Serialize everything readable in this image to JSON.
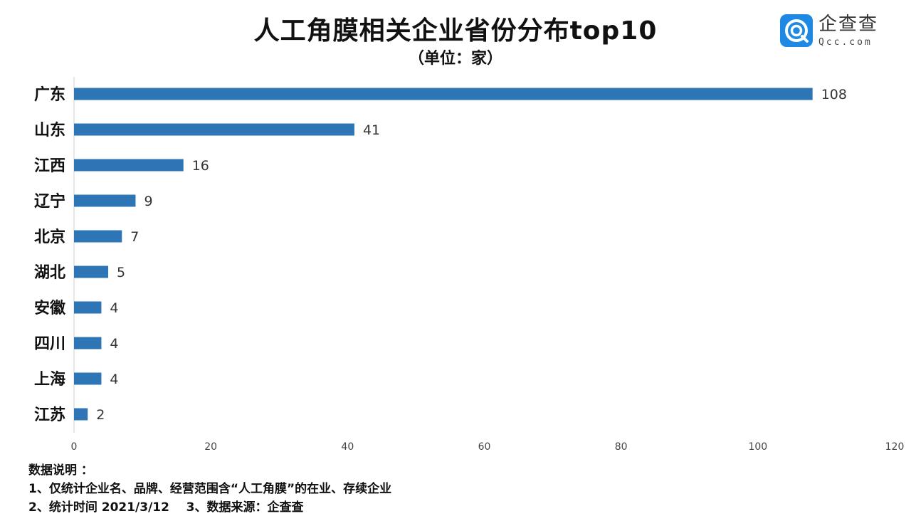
{
  "header": {
    "title": "人工角膜相关企业省份分布top10",
    "subtitle": "（单位：家）"
  },
  "logo": {
    "name": "企查查",
    "domain": "Qcc.com",
    "icon": "qcc-logo-icon",
    "color": "#1e88e5"
  },
  "chart_data": {
    "type": "bar",
    "orientation": "horizontal",
    "categories": [
      "广东",
      "山东",
      "江西",
      "辽宁",
      "北京",
      "湖北",
      "安徽",
      "四川",
      "上海",
      "江苏"
    ],
    "values": [
      108,
      41,
      16,
      9,
      7,
      5,
      4,
      4,
      4,
      2
    ],
    "xlim": [
      0,
      120
    ],
    "xticks": [
      0,
      20,
      40,
      60,
      80,
      100,
      120
    ],
    "bar_color": "#2e75b6",
    "grid": false,
    "data_labels": true
  },
  "notes": {
    "heading": "数据说明 ：",
    "line1": "1、仅统计企业名、品牌、经营范围含“人工角膜”的在业、存续企业",
    "line2": "2、统计时间 2021/3/12    3、数据来源：企查查"
  }
}
